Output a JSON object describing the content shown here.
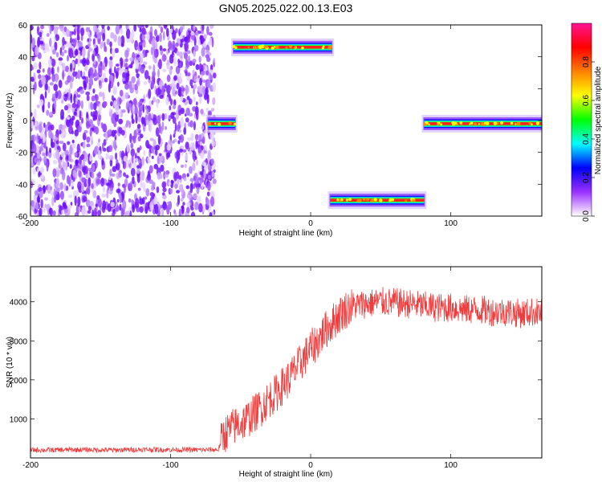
{
  "figure": {
    "title": "GN05.2025.022.00.13.E03"
  },
  "chart_data": [
    {
      "type": "heatmap",
      "xlabel": "Height of straight line (km)",
      "ylabel": "Frequency (Hz)",
      "xlim": [
        -200,
        165
      ],
      "ylim": [
        -60,
        60
      ],
      "xticks": [
        -200,
        -100,
        0,
        100
      ],
      "yticks": [
        -60,
        -40,
        -20,
        0,
        20,
        40,
        60
      ],
      "grid": false,
      "noise_region": {
        "x": [
          -200,
          -72
        ],
        "y": [
          -60,
          60
        ]
      },
      "tracks": [
        {
          "x": [
            -73,
            -54
          ],
          "frequency": -2
        },
        {
          "x": [
            -55,
            15
          ],
          "frequency": 46
        },
        {
          "x": [
            14,
            81
          ],
          "frequency": -50
        },
        {
          "x": [
            81,
            165
          ],
          "frequency": -2
        }
      ],
      "colorbar": {
        "label": "Normalized spectral amplitude",
        "range": [
          0,
          1
        ],
        "ticks": [
          0.0,
          0.2,
          0.4,
          0.6,
          0.8
        ],
        "colors": [
          "#ffffff",
          "#9b30ff",
          "#0000ff",
          "#00ffff",
          "#00ff00",
          "#ffff00",
          "#ff8000",
          "#ff0000",
          "#ff1493"
        ]
      }
    },
    {
      "type": "line",
      "xlabel": "Height of straight line (km)",
      "ylabel": "SNR (10 * v/v)",
      "xlim": [
        -200,
        165
      ],
      "ylim": [
        0,
        4900
      ],
      "xticks": [
        -200,
        -100,
        0,
        100
      ],
      "yticks": [
        1000,
        2000,
        3000,
        4000
      ],
      "grid": false,
      "series": [
        {
          "color": "#f03c3c",
          "x": [
            -200,
            -180,
            -160,
            -140,
            -120,
            -100,
            -80,
            -66,
            -62,
            -55,
            -50,
            -45,
            -40,
            -35,
            -30,
            -25,
            -20,
            -15,
            -10,
            -5,
            0,
            5,
            10,
            15,
            20,
            25,
            30,
            40,
            50,
            60,
            70,
            80,
            90,
            100,
            110,
            120,
            130,
            140,
            150,
            160,
            165
          ],
          "values": [
            200,
            205,
            210,
            200,
            215,
            210,
            205,
            210,
            600,
            800,
            900,
            1000,
            1150,
            1300,
            1500,
            1650,
            1850,
            2050,
            2300,
            2550,
            2800,
            3000,
            3250,
            3450,
            3650,
            3800,
            3900,
            3950,
            4000,
            3980,
            3950,
            3900,
            3850,
            3850,
            3800,
            3800,
            3750,
            3750,
            3700,
            3750,
            3700
          ]
        }
      ]
    }
  ]
}
